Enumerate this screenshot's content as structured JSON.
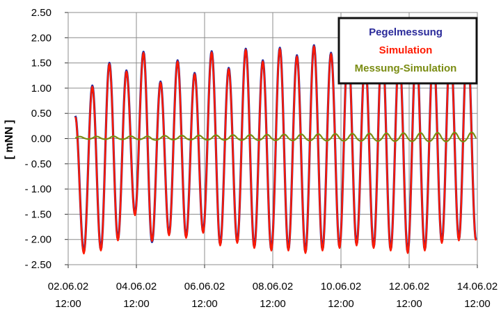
{
  "chart_data": {
    "type": "line",
    "title": "",
    "xlabel": "",
    "ylabel": "[ mNN ]",
    "ylim": [
      -2.5,
      2.5
    ],
    "xlim": [
      "02.06.02 12:00",
      "14.06.02 12:00"
    ],
    "grid": true,
    "legend_position": "top-right",
    "yticks": [
      "2.50",
      "2.00",
      "1.50",
      "1.00",
      "0.50",
      "0.00",
      "- 0.50",
      "- 1.00",
      "- 1.50",
      "- 2.00",
      "- 2.50"
    ],
    "xticks": [
      {
        "date": "02.06.02",
        "time": "12:00"
      },
      {
        "date": "04.06.02",
        "time": "12:00"
      },
      {
        "date": "06.06.02",
        "time": "12:00"
      },
      {
        "date": "08.06.02",
        "time": "12:00"
      },
      {
        "date": "10.06.02",
        "time": "12:00"
      },
      {
        "date": "12.06.02",
        "time": "12:00"
      },
      {
        "date": "14.06.02",
        "time": "12:00"
      }
    ],
    "series": [
      {
        "name": "Pegelmessung",
        "color": "#2a2a9a",
        "extrema": [
          [
            "02.06.02 17:00",
            0.45
          ],
          [
            "02.06.02 23:00",
            -2.25
          ],
          [
            "03.06.02 05:00",
            1.05
          ],
          [
            "03.06.02 11:00",
            -2.2
          ],
          [
            "03.06.02 17:00",
            1.5
          ],
          [
            "03.06.02 23:00",
            -2.0
          ],
          [
            "04.06.02 05:00",
            1.35
          ],
          [
            "04.06.02 11:00",
            -1.5
          ],
          [
            "04.06.02 17:00",
            1.72
          ],
          [
            "04.06.02 23:00",
            -2.05
          ],
          [
            "05.06.02 05:00",
            1.13
          ],
          [
            "05.06.02 11:00",
            -1.9
          ],
          [
            "05.06.02 17:00",
            1.55
          ],
          [
            "05.06.02 23:00",
            -1.95
          ],
          [
            "06.06.02 05:00",
            1.3
          ],
          [
            "06.06.02 11:00",
            -1.85
          ],
          [
            "06.06.02 17:00",
            1.73
          ],
          [
            "06.06.02 23:00",
            -2.1
          ],
          [
            "07.06.02 05:00",
            1.4
          ],
          [
            "07.06.02 11:00",
            -2.05
          ],
          [
            "07.06.02 17:00",
            1.78
          ],
          [
            "07.06.02 23:00",
            -2.15
          ],
          [
            "08.06.02 05:00",
            1.55
          ],
          [
            "08.06.02 11:00",
            -2.2
          ],
          [
            "08.06.02 17:00",
            1.8
          ],
          [
            "08.06.02 23:00",
            -2.2
          ],
          [
            "09.06.02 05:00",
            1.65
          ],
          [
            "09.06.02 11:00",
            -2.25
          ],
          [
            "09.06.02 17:00",
            1.85
          ],
          [
            "09.06.02 23:00",
            -2.2
          ],
          [
            "10.06.02 05:00",
            1.7
          ],
          [
            "10.06.02 11:00",
            -2.15
          ],
          [
            "10.06.02 17:00",
            1.9
          ],
          [
            "10.06.02 23:00",
            -2.1
          ],
          [
            "11.06.02 05:00",
            1.6
          ],
          [
            "11.06.02 11:00",
            -2.15
          ],
          [
            "11.06.02 17:00",
            1.95
          ],
          [
            "11.06.02 23:00",
            -2.2
          ],
          [
            "12.06.02 05:00",
            1.75
          ],
          [
            "12.06.02 11:00",
            -2.25
          ],
          [
            "12.06.02 17:00",
            1.85
          ],
          [
            "12.06.02 23:00",
            -2.2
          ],
          [
            "13.06.02 05:00",
            1.8
          ],
          [
            "13.06.02 11:00",
            -2.05
          ],
          [
            "13.06.02 17:00",
            1.9
          ],
          [
            "13.06.02 23:00",
            -2.0
          ],
          [
            "14.06.02 05:00",
            2.05
          ],
          [
            "14.06.02 11:00",
            -2.0
          ]
        ]
      },
      {
        "name": "Simulation",
        "color": "#ff1a00",
        "extrema": [
          [
            "02.06.02 17:00",
            0.43
          ],
          [
            "02.06.02 23:00",
            -2.28
          ],
          [
            "03.06.02 05:00",
            1.03
          ],
          [
            "03.06.02 11:00",
            -2.22
          ],
          [
            "03.06.02 17:00",
            1.48
          ],
          [
            "03.06.02 23:00",
            -2.02
          ],
          [
            "04.06.02 05:00",
            1.33
          ],
          [
            "04.06.02 11:00",
            -1.52
          ],
          [
            "04.06.02 17:00",
            1.7
          ],
          [
            "04.06.02 23:00",
            -2.03
          ],
          [
            "05.06.02 05:00",
            1.11
          ],
          [
            "05.06.02 11:00",
            -1.92
          ],
          [
            "05.06.02 17:00",
            1.53
          ],
          [
            "05.06.02 23:00",
            -1.97
          ],
          [
            "06.06.02 05:00",
            1.28
          ],
          [
            "06.06.02 11:00",
            -1.87
          ],
          [
            "06.06.02 17:00",
            1.71
          ],
          [
            "06.06.02 23:00",
            -2.12
          ],
          [
            "07.06.02 05:00",
            1.38
          ],
          [
            "07.06.02 11:00",
            -2.07
          ],
          [
            "07.06.02 17:00",
            1.76
          ],
          [
            "07.06.02 23:00",
            -2.17
          ],
          [
            "08.06.02 05:00",
            1.53
          ],
          [
            "08.06.02 11:00",
            -2.22
          ],
          [
            "08.06.02 17:00",
            1.78
          ],
          [
            "08.06.02 23:00",
            -2.22
          ],
          [
            "09.06.02 05:00",
            1.63
          ],
          [
            "09.06.02 11:00",
            -2.27
          ],
          [
            "09.06.02 17:00",
            1.83
          ],
          [
            "09.06.02 23:00",
            -2.22
          ],
          [
            "10.06.02 05:00",
            1.68
          ],
          [
            "10.06.02 11:00",
            -2.17
          ],
          [
            "10.06.02 17:00",
            1.88
          ],
          [
            "10.06.02 23:00",
            -2.12
          ],
          [
            "11.06.02 05:00",
            1.58
          ],
          [
            "11.06.02 11:00",
            -2.17
          ],
          [
            "11.06.02 17:00",
            1.93
          ],
          [
            "11.06.02 23:00",
            -2.22
          ],
          [
            "12.06.02 05:00",
            1.73
          ],
          [
            "12.06.02 11:00",
            -2.27
          ],
          [
            "12.06.02 17:00",
            1.83
          ],
          [
            "12.06.02 23:00",
            -2.22
          ],
          [
            "13.06.02 05:00",
            1.78
          ],
          [
            "13.06.02 11:00",
            -2.07
          ],
          [
            "13.06.02 17:00",
            1.88
          ],
          [
            "13.06.02 23:00",
            -2.02
          ],
          [
            "14.06.02 05:00",
            2.03
          ],
          [
            "14.06.02 11:00",
            -2.02
          ]
        ]
      },
      {
        "name": "Messung-Simulation",
        "color": "#7a8c12",
        "baseline": 0.0,
        "amplitude_range": [
          0.03,
          0.12
        ]
      }
    ]
  },
  "legend": {
    "items": [
      {
        "label": "Pegelmessung",
        "color": "#2a2a9a"
      },
      {
        "label": "Simulation",
        "color": "#ff1a00"
      },
      {
        "label": "Messung-Simulation",
        "color": "#7a8c12"
      }
    ]
  }
}
